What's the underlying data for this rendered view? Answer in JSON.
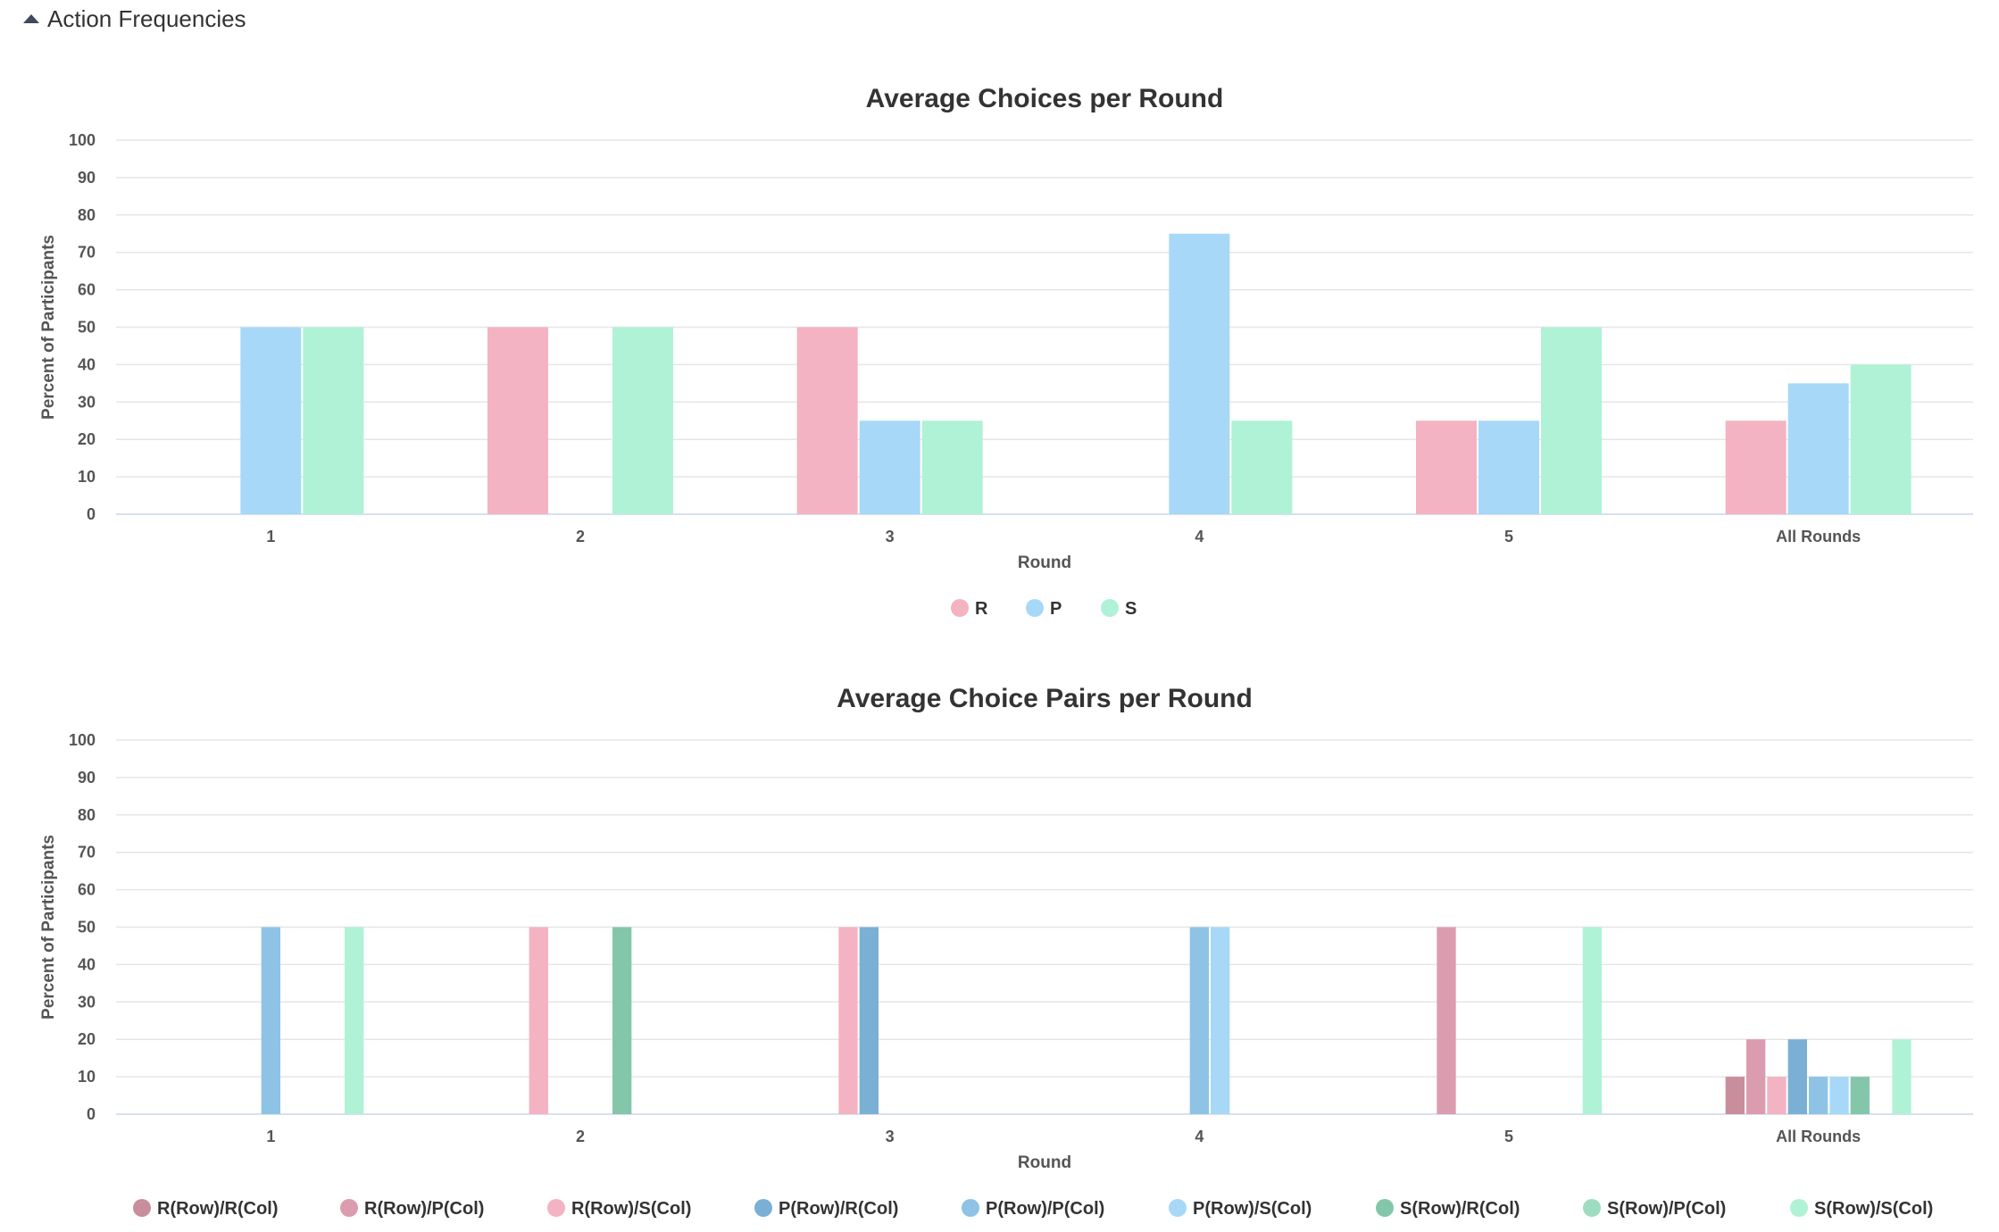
{
  "section": {
    "title": "Action Frequencies",
    "icon": "caret-up-icon"
  },
  "chart_data": [
    {
      "type": "bar",
      "title": "Average Choices per Round",
      "xlabel": "Round",
      "ylabel": "Percent of Participants",
      "ylim": [
        0,
        100
      ],
      "yticks": [
        0,
        10,
        20,
        30,
        40,
        50,
        60,
        70,
        80,
        90,
        100
      ],
      "grid": true,
      "legend_position": "bottom-center",
      "categories": [
        "1",
        "2",
        "3",
        "4",
        "5",
        "All Rounds"
      ],
      "series": [
        {
          "name": "R",
          "color": "#f4b3c2",
          "values": [
            0,
            50,
            50,
            0,
            25,
            25
          ]
        },
        {
          "name": "P",
          "color": "#a8d8f8",
          "values": [
            50,
            0,
            25,
            75,
            25,
            35
          ]
        },
        {
          "name": "S",
          "color": "#b0f2d6",
          "values": [
            50,
            50,
            25,
            25,
            50,
            40
          ]
        }
      ]
    },
    {
      "type": "bar",
      "title": "Average Choice Pairs per Round",
      "xlabel": "Round",
      "ylabel": "Percent of Participants",
      "ylim": [
        0,
        100
      ],
      "yticks": [
        0,
        10,
        20,
        30,
        40,
        50,
        60,
        70,
        80,
        90,
        100
      ],
      "grid": true,
      "legend_position": "bottom-center",
      "categories": [
        "1",
        "2",
        "3",
        "4",
        "5",
        "All Rounds"
      ],
      "series": [
        {
          "name": "R(Row)/R(Col)",
          "color": "#c98e9b",
          "values": [
            0,
            0,
            0,
            0,
            0,
            10
          ]
        },
        {
          "name": "R(Row)/P(Col)",
          "color": "#dc9caf",
          "values": [
            0,
            0,
            0,
            0,
            50,
            20
          ]
        },
        {
          "name": "R(Row)/S(Col)",
          "color": "#f4b3c2",
          "values": [
            0,
            50,
            50,
            0,
            0,
            10
          ]
        },
        {
          "name": "P(Row)/R(Col)",
          "color": "#7ab0d4",
          "values": [
            0,
            0,
            50,
            0,
            0,
            20
          ]
        },
        {
          "name": "P(Row)/P(Col)",
          "color": "#8ec3e6",
          "values": [
            50,
            0,
            0,
            50,
            0,
            10
          ]
        },
        {
          "name": "P(Row)/S(Col)",
          "color": "#a8d8f8",
          "values": [
            0,
            0,
            0,
            50,
            0,
            10
          ]
        },
        {
          "name": "S(Row)/R(Col)",
          "color": "#84c6aa",
          "values": [
            0,
            50,
            0,
            0,
            0,
            10
          ]
        },
        {
          "name": "S(Row)/P(Col)",
          "color": "#9ddcc0",
          "values": [
            0,
            0,
            0,
            0,
            0,
            0
          ]
        },
        {
          "name": "S(Row)/S(Col)",
          "color": "#b0f2d6",
          "values": [
            50,
            0,
            0,
            0,
            50,
            20
          ]
        }
      ]
    }
  ]
}
